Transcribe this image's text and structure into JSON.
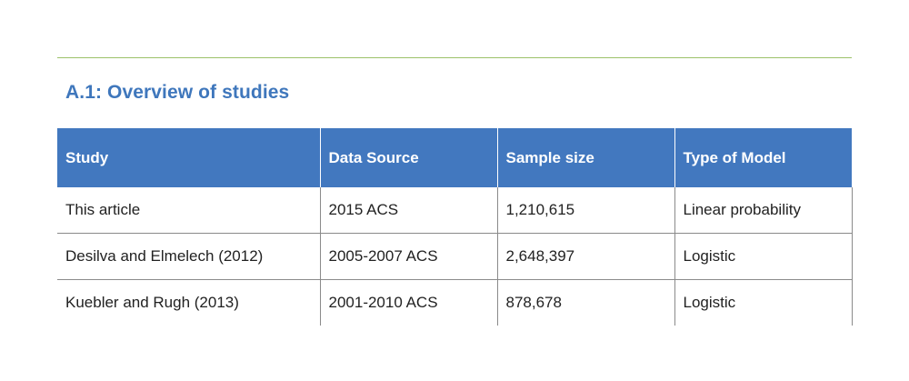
{
  "title": "A.1: Overview of studies",
  "table": {
    "headers": [
      "Study",
      "Data Source",
      "Sample size",
      "Type of Model"
    ],
    "rows": [
      [
        "This article",
        "2015 ACS",
        "1,210,615",
        "Linear probability"
      ],
      [
        "Desilva and Elmelech (2012)",
        "2005-2007 ACS",
        "2,648,397",
        "Logistic"
      ],
      [
        "Kuebler and Rugh (2013)",
        "2001-2010 ACS",
        "878,678",
        "Logistic"
      ]
    ]
  },
  "colors": {
    "header_bg": "#4278bf",
    "title": "#3f77bc",
    "top_rule": "#9cc26a"
  }
}
